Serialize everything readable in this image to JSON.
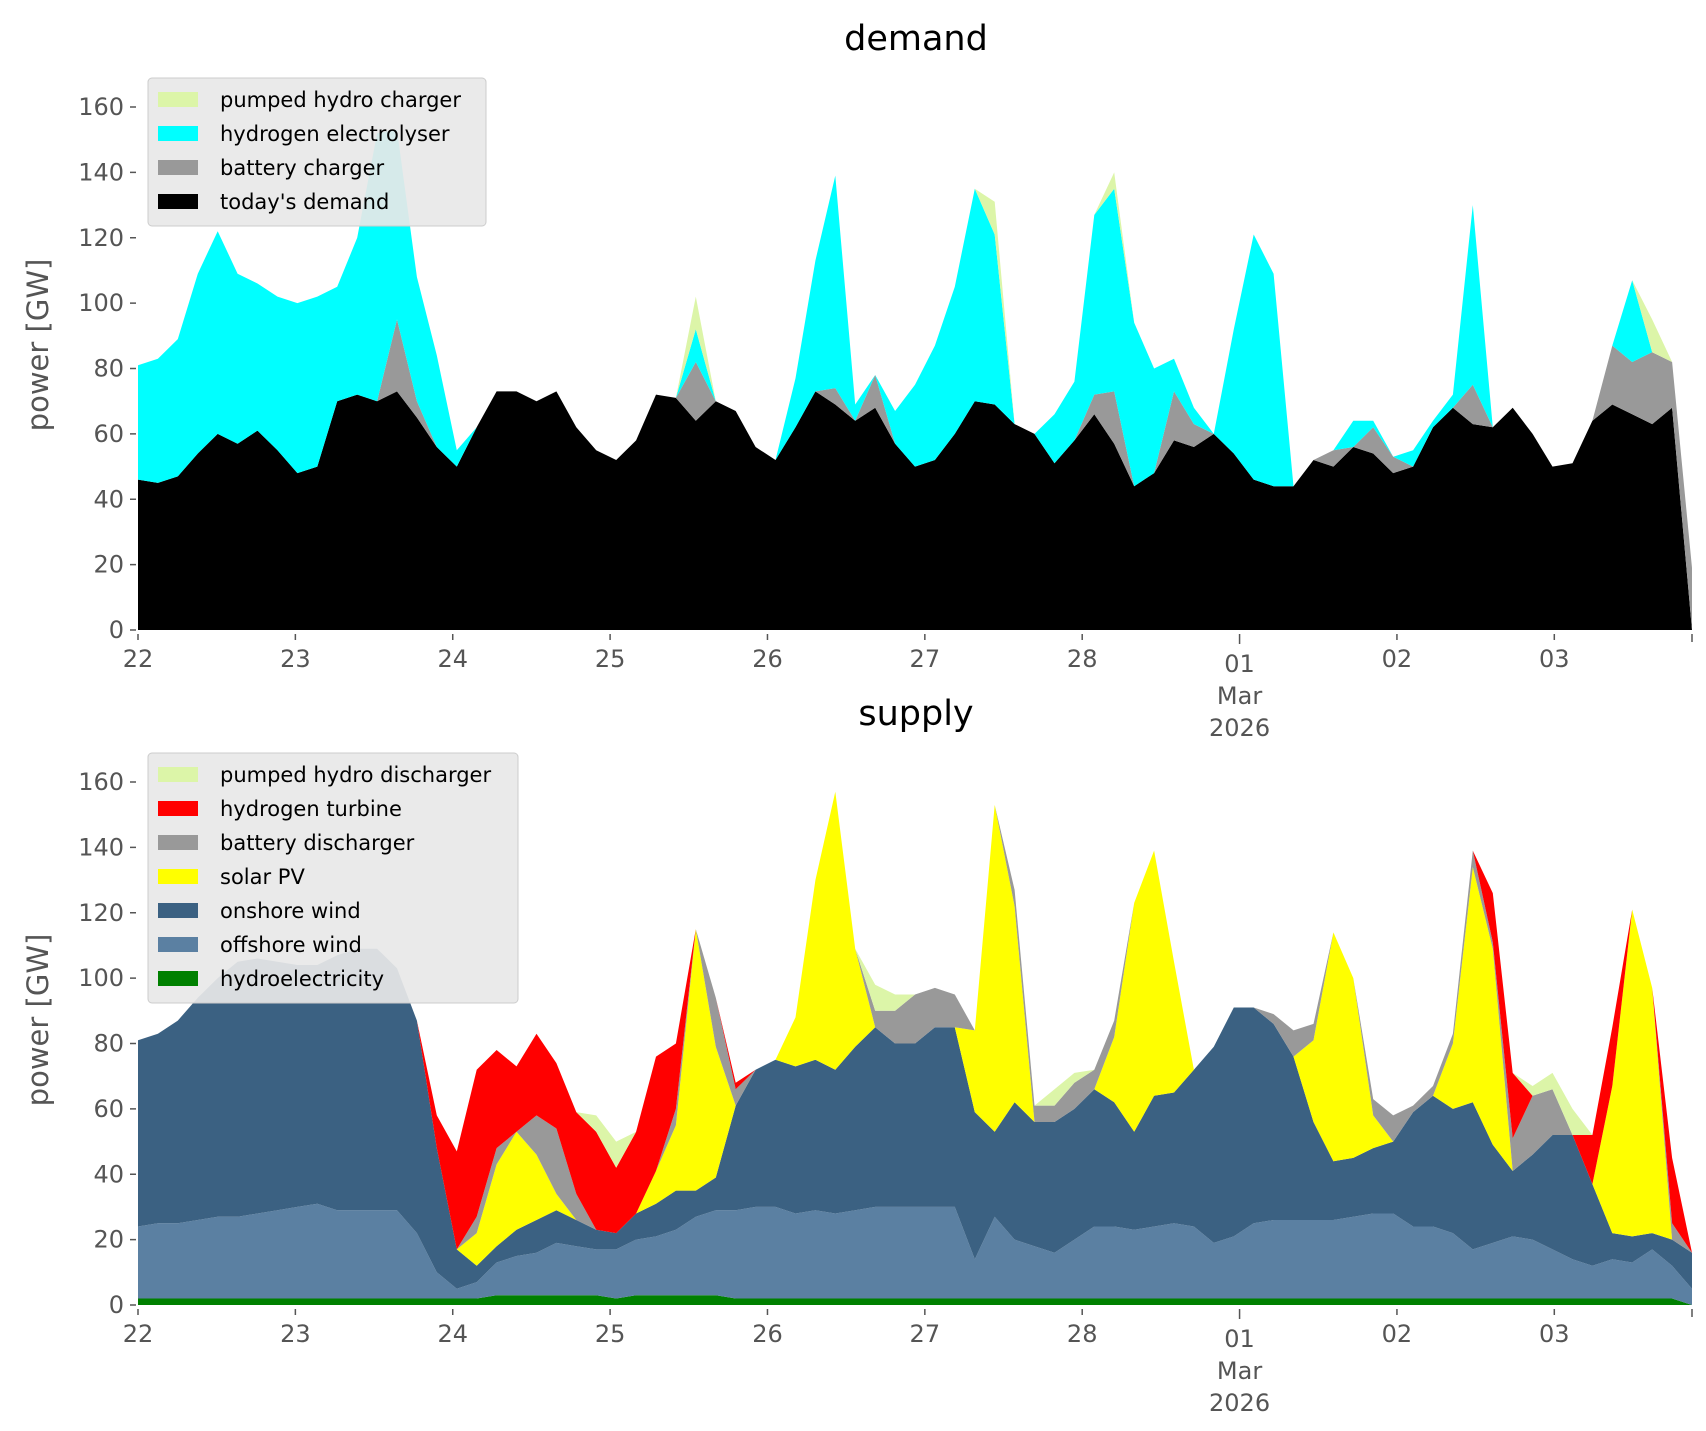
{
  "chart_data": [
    {
      "type": "area",
      "stacked": true,
      "title": "demand",
      "xlabel": "",
      "ylabel": "power [GW]",
      "ylim": [
        0,
        170
      ],
      "yticks": [
        0,
        20,
        40,
        60,
        80,
        100,
        120,
        140,
        160
      ],
      "x_start": "2026-02-22 00:00",
      "x_end": "2026-03-03 23:00",
      "x_step_hours": 3,
      "xtick_labels": [
        "22",
        "23",
        "24",
        "25",
        "26",
        "27",
        "28",
        "01\nMar\n2026",
        "02",
        "03"
      ],
      "grid": false,
      "legend_position": "top-left",
      "legend": [
        "pumped hydro charger",
        "hydrogen electrolyser",
        "battery charger",
        "today's demand"
      ],
      "series": [
        {
          "name": "today's demand",
          "color": "#000000",
          "values": [
            46,
            45,
            47,
            54,
            60,
            57,
            61,
            55,
            48,
            50,
            70,
            72,
            70,
            73,
            65,
            56,
            50,
            62,
            73,
            73,
            70,
            73,
            62,
            55,
            52,
            58,
            72,
            71,
            64,
            70,
            67,
            56,
            52,
            62,
            73,
            69,
            64,
            68,
            57,
            50,
            52,
            60,
            70,
            69,
            63,
            60,
            51,
            58,
            66,
            57,
            44,
            48,
            58,
            56,
            60,
            54,
            46,
            44,
            44,
            52,
            50,
            56,
            54,
            48,
            50,
            62,
            68,
            63,
            62,
            68,
            60,
            50,
            51,
            64,
            69,
            66,
            63,
            68,
            0
          ]
        },
        {
          "name": "battery charger",
          "color": "#999999",
          "values": [
            0,
            0,
            0,
            0,
            0,
            0,
            0,
            0,
            0,
            0,
            0,
            0,
            0,
            22,
            5,
            0,
            0,
            0,
            0,
            0,
            0,
            0,
            0,
            0,
            0,
            0,
            0,
            0,
            18,
            0,
            0,
            0,
            0,
            0,
            0,
            5,
            0,
            10,
            0,
            0,
            0,
            0,
            0,
            0,
            0,
            0,
            0,
            0,
            6,
            16,
            0,
            0,
            15,
            7,
            0,
            0,
            0,
            0,
            0,
            0,
            5,
            0,
            8,
            5,
            0,
            0,
            0,
            12,
            0,
            0,
            0,
            0,
            0,
            0,
            18,
            16,
            22,
            14,
            19
          ]
        },
        {
          "name": "hydrogen electrolyser",
          "color": "#00ffff",
          "values": [
            35,
            38,
            42,
            55,
            62,
            52,
            45,
            47,
            52,
            52,
            35,
            48,
            82,
            58,
            38,
            28,
            5,
            0,
            0,
            0,
            0,
            0,
            0,
            0,
            0,
            0,
            0,
            0,
            10,
            0,
            0,
            0,
            0,
            15,
            40,
            65,
            5,
            0,
            10,
            25,
            35,
            45,
            65,
            52,
            0,
            0,
            15,
            18,
            55,
            62,
            50,
            32,
            10,
            5,
            0,
            38,
            75,
            65,
            0,
            0,
            0,
            8,
            2,
            0,
            5,
            2,
            4,
            55,
            0,
            0,
            0,
            0,
            0,
            0,
            0,
            25,
            0,
            0,
            0
          ]
        },
        {
          "name": "pumped hydro charger",
          "color": "#dcf5a8",
          "values": [
            0,
            0,
            0,
            0,
            0,
            0,
            0,
            0,
            0,
            0,
            0,
            0,
            0,
            0,
            0,
            0,
            0,
            0,
            0,
            0,
            0,
            0,
            0,
            0,
            0,
            0,
            0,
            0,
            10,
            0,
            0,
            0,
            0,
            0,
            0,
            0,
            0,
            0,
            0,
            0,
            0,
            0,
            0,
            10,
            0,
            0,
            0,
            0,
            0,
            5,
            0,
            0,
            0,
            0,
            0,
            0,
            0,
            0,
            0,
            0,
            0,
            0,
            0,
            0,
            0,
            0,
            0,
            0,
            0,
            0,
            0,
            0,
            0,
            0,
            0,
            0,
            10,
            0,
            0
          ]
        }
      ]
    },
    {
      "type": "area",
      "stacked": true,
      "title": "supply",
      "xlabel": "",
      "ylabel": "power [GW]",
      "ylim": [
        0,
        170
      ],
      "yticks": [
        0,
        20,
        40,
        60,
        80,
        100,
        120,
        140,
        160
      ],
      "x_start": "2026-02-22 00:00",
      "x_end": "2026-03-03 23:00",
      "x_step_hours": 3,
      "xtick_labels": [
        "22",
        "23",
        "24",
        "25",
        "26",
        "27",
        "28",
        "01\nMar\n2026",
        "02",
        "03"
      ],
      "grid": false,
      "legend_position": "top-left",
      "legend": [
        "pumped hydro discharger",
        "hydrogen turbine",
        "battery discharger",
        "solar PV",
        "onshore wind",
        "offshore wind",
        "hydroelectricity"
      ],
      "series": [
        {
          "name": "hydroelectricity",
          "color": "#008000",
          "values": [
            2,
            2,
            2,
            2,
            2,
            2,
            2,
            2,
            2,
            2,
            2,
            2,
            2,
            2,
            2,
            2,
            2,
            2,
            3,
            3,
            3,
            3,
            3,
            3,
            2,
            3,
            3,
            3,
            3,
            3,
            2,
            2,
            2,
            2,
            2,
            2,
            2,
            2,
            2,
            2,
            2,
            2,
            2,
            2,
            2,
            2,
            2,
            2,
            2,
            2,
            2,
            2,
            2,
            2,
            2,
            2,
            2,
            2,
            2,
            2,
            2,
            2,
            2,
            2,
            2,
            2,
            2,
            2,
            2,
            2,
            2,
            2,
            2,
            2,
            2,
            2,
            2,
            2,
            0
          ]
        },
        {
          "name": "offshore wind",
          "color": "#5b80a2",
          "values": [
            22,
            23,
            23,
            24,
            25,
            25,
            26,
            27,
            28,
            29,
            27,
            27,
            27,
            27,
            20,
            8,
            3,
            5,
            10,
            12,
            13,
            16,
            15,
            14,
            15,
            17,
            18,
            20,
            24,
            26,
            27,
            28,
            28,
            26,
            27,
            26,
            27,
            28,
            28,
            28,
            28,
            28,
            12,
            25,
            18,
            16,
            14,
            18,
            22,
            22,
            21,
            22,
            23,
            22,
            17,
            19,
            23,
            24,
            24,
            24,
            24,
            25,
            26,
            26,
            22,
            22,
            20,
            15,
            17,
            19,
            18,
            15,
            12,
            10,
            12,
            11,
            15,
            10,
            5
          ]
        },
        {
          "name": "onshore wind",
          "color": "#3b6182",
          "values": [
            57,
            58,
            62,
            68,
            73,
            78,
            78,
            76,
            74,
            73,
            78,
            80,
            80,
            74,
            65,
            38,
            12,
            5,
            5,
            8,
            10,
            10,
            8,
            6,
            5,
            8,
            10,
            12,
            8,
            10,
            32,
            42,
            45,
            45,
            46,
            44,
            50,
            55,
            50,
            50,
            55,
            55,
            45,
            26,
            42,
            38,
            40,
            40,
            42,
            38,
            30,
            40,
            40,
            48,
            60,
            70,
            66,
            60,
            50,
            30,
            18,
            18,
            20,
            22,
            35,
            40,
            38,
            45,
            30,
            20,
            26,
            35,
            38,
            25,
            8,
            8,
            5,
            8,
            11
          ]
        },
        {
          "name": "solar PV",
          "color": "#ffff00",
          "values": [
            0,
            0,
            0,
            0,
            0,
            0,
            0,
            0,
            0,
            0,
            0,
            0,
            0,
            0,
            0,
            0,
            0,
            10,
            25,
            30,
            20,
            5,
            0,
            0,
            0,
            0,
            10,
            20,
            80,
            40,
            0,
            0,
            0,
            15,
            55,
            85,
            30,
            0,
            0,
            0,
            0,
            0,
            25,
            100,
            60,
            0,
            0,
            0,
            0,
            20,
            70,
            75,
            40,
            0,
            0,
            0,
            0,
            0,
            0,
            25,
            70,
            55,
            10,
            0,
            0,
            0,
            20,
            72,
            60,
            0,
            0,
            0,
            0,
            0,
            45,
            100,
            75,
            0,
            0
          ]
        },
        {
          "name": "battery discharger",
          "color": "#999999",
          "values": [
            0,
            0,
            0,
            0,
            0,
            0,
            0,
            0,
            0,
            0,
            0,
            0,
            0,
            0,
            0,
            0,
            0,
            5,
            5,
            0,
            12,
            20,
            8,
            0,
            0,
            0,
            0,
            5,
            0,
            15,
            5,
            0,
            0,
            0,
            0,
            0,
            0,
            5,
            10,
            15,
            12,
            10,
            0,
            0,
            5,
            5,
            5,
            8,
            6,
            5,
            0,
            0,
            0,
            0,
            0,
            0,
            0,
            3,
            8,
            5,
            0,
            0,
            5,
            8,
            2,
            3,
            3,
            5,
            2,
            10,
            18,
            14,
            0,
            0,
            0,
            0,
            0,
            5,
            0
          ]
        },
        {
          "name": "hydrogen turbine",
          "color": "#ff0000",
          "values": [
            0,
            0,
            0,
            0,
            0,
            0,
            0,
            0,
            0,
            0,
            0,
            0,
            0,
            0,
            0,
            10,
            30,
            45,
            30,
            20,
            25,
            20,
            25,
            30,
            20,
            25,
            35,
            20,
            0,
            0,
            2,
            0,
            0,
            0,
            0,
            0,
            0,
            0,
            0,
            0,
            0,
            0,
            0,
            0,
            0,
            0,
            0,
            0,
            0,
            0,
            0,
            0,
            0,
            0,
            0,
            0,
            0,
            0,
            0,
            0,
            0,
            0,
            0,
            0,
            0,
            0,
            0,
            0,
            15,
            20,
            0,
            0,
            0,
            15,
            18,
            0,
            0,
            20,
            0
          ]
        },
        {
          "name": "pumped hydro discharger",
          "color": "#dcf5a8",
          "values": [
            0,
            0,
            0,
            0,
            0,
            0,
            0,
            0,
            0,
            0,
            0,
            0,
            0,
            0,
            0,
            0,
            0,
            0,
            0,
            0,
            0,
            0,
            0,
            5,
            8,
            0,
            0,
            0,
            0,
            0,
            0,
            0,
            0,
            0,
            0,
            0,
            0,
            8,
            5,
            0,
            0,
            0,
            0,
            0,
            0,
            0,
            5,
            3,
            0,
            0,
            0,
            0,
            0,
            0,
            0,
            0,
            0,
            0,
            0,
            0,
            0,
            0,
            0,
            0,
            0,
            0,
            0,
            0,
            0,
            0,
            3,
            5,
            8,
            0,
            0,
            0,
            0,
            0,
            0
          ]
        }
      ]
    }
  ]
}
